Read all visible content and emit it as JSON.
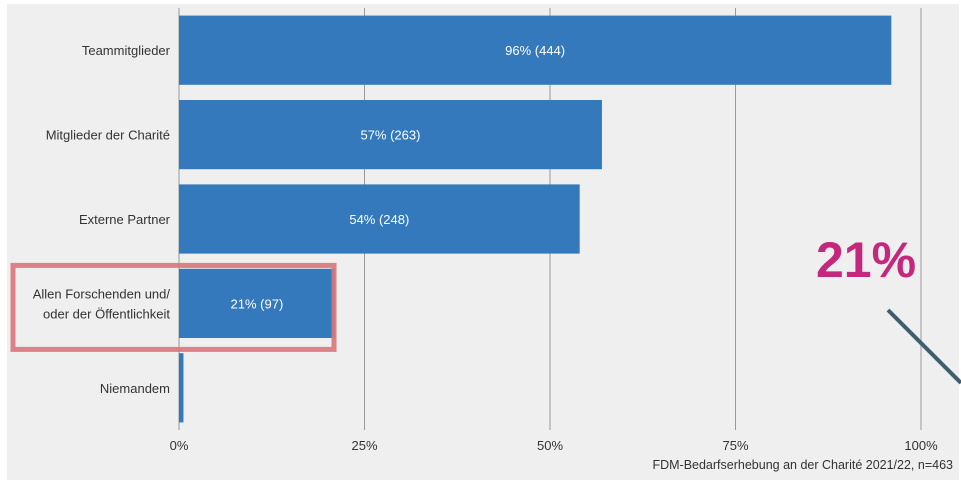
{
  "chart_data": {
    "type": "bar",
    "orientation": "horizontal",
    "categories": [
      "Teammitglieder",
      "Mitglieder der Charité",
      "Externe Partner",
      "Allen Forschenden und/ oder der Öffentlichkeit",
      "Niemandem"
    ],
    "category_lines": [
      [
        "Teammitglieder"
      ],
      [
        "Mitglieder der Charité"
      ],
      [
        "Externe Partner"
      ],
      [
        "Allen Forschenden und/",
        "oder der Öffentlichkeit"
      ],
      [
        "Niemandem"
      ]
    ],
    "values": [
      96,
      57,
      54,
      21,
      0.6
    ],
    "bar_labels": [
      "96% (444)",
      "57% (263)",
      "54% (248)",
      "21% (97)",
      ""
    ],
    "xlim": [
      0,
      100
    ],
    "xticks": [
      0,
      25,
      50,
      75,
      100
    ],
    "xtick_labels": [
      "0%",
      "25%",
      "50%",
      "75%",
      "100%"
    ],
    "grid": "vertical",
    "highlight_index": 3,
    "source_note": "FDM-Bedarfserhebung an der Charité 2021/22, n=463",
    "callout_text": "21%",
    "colors": {
      "bar": "#3479bb",
      "highlight": "#d9747a",
      "callout": "#c4287c",
      "pointer": "#3f5f6e",
      "grid": "#9a9a9a",
      "background": "#efefef"
    }
  }
}
